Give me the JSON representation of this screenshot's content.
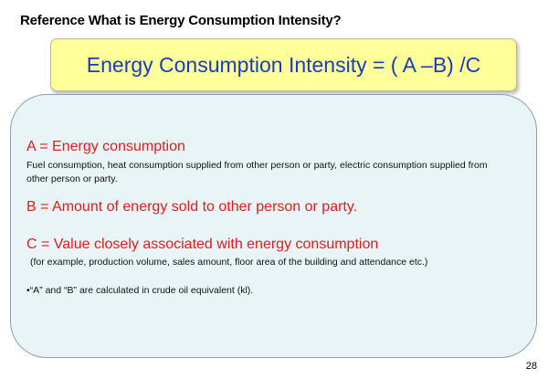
{
  "slide": {
    "title": "Reference  What is Energy Consumption Intensity?",
    "formula": "Energy Consumption Intensity = ( A –B) /C",
    "items": [
      {
        "heading": "A = Energy consumption",
        "description": "Fuel consumption, heat consumption supplied from other person or party, electric consumption supplied from other person or party."
      },
      {
        "heading": "B = Amount of energy sold to other person or party.",
        "description": ""
      },
      {
        "heading": "C = Value closely associated with energy consumption",
        "description": "(for example, production volume, sales amount, floor area of the building and attendance etc.)"
      }
    ],
    "note": "•“A” and “B” are calculated in crude oil equivalent (kl).",
    "page_number": "28"
  }
}
